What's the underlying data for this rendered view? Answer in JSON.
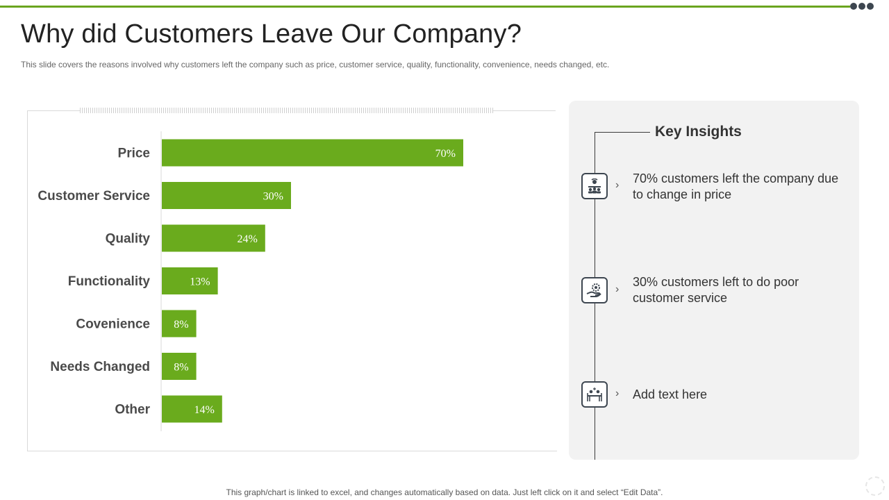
{
  "header": {
    "title": "Why did Customers Leave Our Company?",
    "subtitle": "This slide covers the reasons involved why customers left the company such as price, customer service, quality, functionality, convenience, needs changed, etc."
  },
  "colors": {
    "accent": "#6aa51e",
    "bar": "#6aab1d",
    "dark": "#3d4650",
    "panel": "#f2f2f2"
  },
  "chart_data": {
    "type": "bar",
    "orientation": "horizontal",
    "categories": [
      "Price",
      "Customer Service",
      "Quality",
      "Functionality",
      "Covenience",
      "Needs Changed",
      "Other"
    ],
    "values": [
      70,
      30,
      24,
      13,
      8,
      8,
      14
    ],
    "data_labels": [
      "70%",
      "30%",
      "24%",
      "13%",
      "8%",
      "8%",
      "14%"
    ],
    "unit": "%",
    "title": "",
    "xlabel": "",
    "ylabel": "",
    "xlim": [
      0,
      100
    ],
    "grid": false,
    "legend": "none"
  },
  "insights": {
    "heading": "Key Insights",
    "items": [
      {
        "icon": "team-icon",
        "text": "70% customers left the company due to change in price"
      },
      {
        "icon": "hand-gear-icon",
        "text": "30% customers left to do poor customer service"
      },
      {
        "icon": "meeting-icon",
        "text": "Add text here"
      }
    ]
  },
  "footer": {
    "note": "This graph/chart is linked to excel,  and changes automatically based on data. Just left click on it and select “Edit Data”."
  }
}
